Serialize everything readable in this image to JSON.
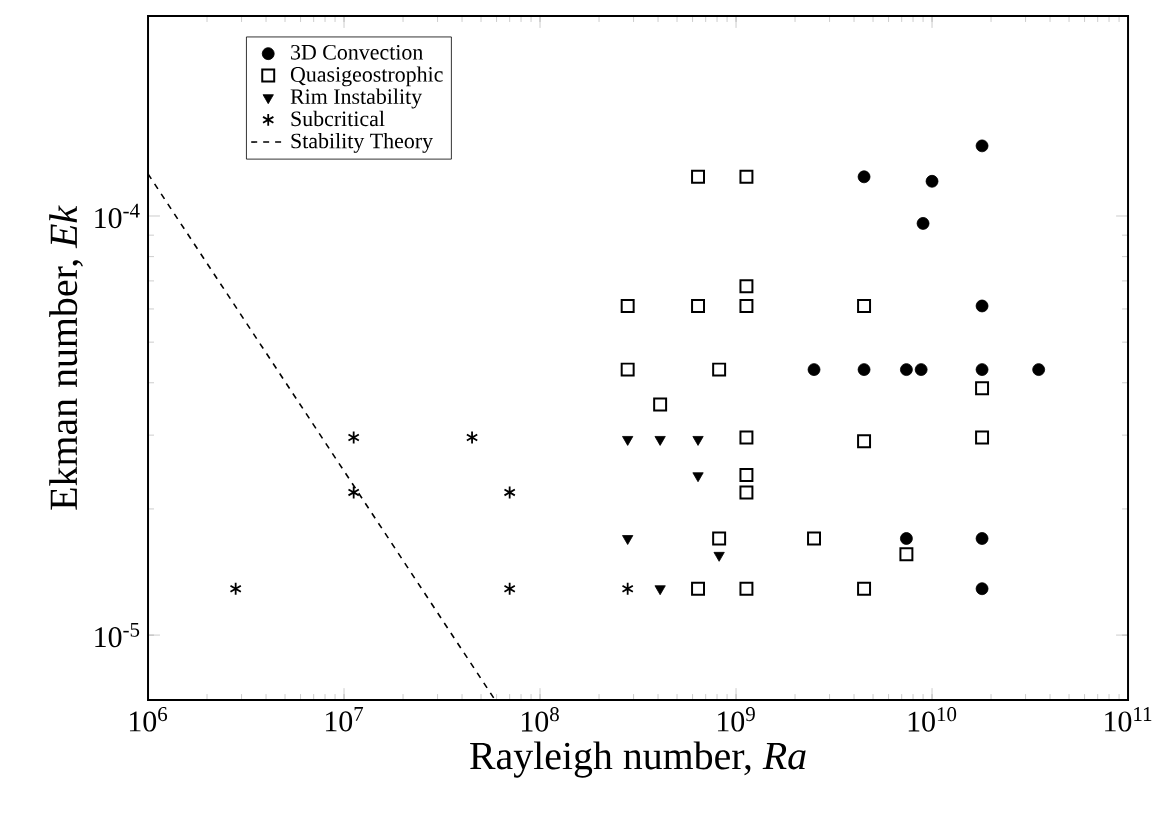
{
  "chart_data": {
    "type": "scatter",
    "xlabel": "Rayleigh number, *Ra*",
    "ylabel": "Ekman number, *Ek*",
    "log": "xy",
    "legend": "top left",
    "xlim": [
      1000000.0,
      100000000000.0
    ],
    "ylim": [
      7e-06,
      0.0003
    ],
    "xticks": [
      {
        "value": 1000000.0,
        "label": "10$^{6}$"
      },
      {
        "value": 10000000.0,
        "label": "10$^{7}$"
      },
      {
        "value": 100000000.0,
        "label": "10$^{8}$"
      },
      {
        "value": 1000000000.0,
        "label": "10$^{9}$"
      },
      {
        "value": 10000000000.0,
        "label": "10$^{10}$"
      },
      {
        "value": 100000000000.0,
        "label": "10$^{11}$"
      }
    ],
    "yticks": [
      {
        "value": 1e-05,
        "label": "10$^{-5}$"
      },
      {
        "value": 0.0001,
        "label": "10$^{-4}$"
      }
    ],
    "series": [
      {
        "name": "3D Convection",
        "color": "#000000",
        "marker": "circle",
        "x": [
          18000000000.0,
          4500000000.0,
          10000000000.0,
          9000000000.0,
          18000000000.0,
          2500000000.0,
          4500000000.0,
          7400000000.0,
          8800000000.0,
          18000000000.0,
          35000000000.0,
          7400000000.0,
          18000000000.0,
          18000000000.0
        ],
        "values": [
          0.000147,
          0.000124,
          0.000121,
          9.6e-05,
          6.1e-05,
          4.3e-05,
          4.3e-05,
          4.3e-05,
          4.3e-05,
          4.3e-05,
          4.3e-05,
          1.7e-05,
          1.7e-05,
          1.29e-05
        ]
      },
      {
        "name": "Quasigeostrophic",
        "color": "#000000",
        "marker": "square",
        "x": [
          640000000.0,
          1130000000.0,
          1130000000.0,
          280000000.0,
          640000000.0,
          1130000000.0,
          4500000000.0,
          280000000.0,
          820000000.0,
          18000000000.0,
          410000000.0,
          1130000000.0,
          18000000000.0,
          4500000000.0,
          1130000000.0,
          1130000000.0,
          820000000.0,
          2500000000.0,
          7400000000.0,
          640000000.0,
          1130000000.0,
          4500000000.0
        ],
        "values": [
          0.000124,
          0.000124,
          6.8e-05,
          6.1e-05,
          6.1e-05,
          6.1e-05,
          6.1e-05,
          4.3e-05,
          4.3e-05,
          3.88e-05,
          3.55e-05,
          2.96e-05,
          2.96e-05,
          2.9e-05,
          2.41e-05,
          2.19e-05,
          1.7e-05,
          1.7e-05,
          1.56e-05,
          1.29e-05,
          1.29e-05,
          1.29e-05
        ]
      },
      {
        "name": "Rim Instability",
        "color": "#000000",
        "marker": "triangle",
        "x": [
          280000000.0,
          410000000.0,
          640000000.0,
          640000000.0,
          280000000.0,
          820000000.0,
          410000000.0
        ],
        "values": [
          2.93e-05,
          2.93e-05,
          2.93e-05,
          2.4e-05,
          1.7e-05,
          1.55e-05,
          1.29e-05
        ]
      },
      {
        "name": "Subcritical",
        "color": "#000000",
        "marker": "cross",
        "x": [
          11200000.0,
          45000000.0,
          11200000.0,
          70000000.0,
          2800000.0,
          70000000.0,
          280000000.0
        ],
        "values": [
          2.96e-05,
          2.96e-05,
          2.19e-05,
          2.19e-05,
          1.29e-05,
          1.29e-05,
          1.29e-05
        ]
      },
      {
        "name": "Stability Theory",
        "type": "line",
        "color": "#000000",
        "marker": "none",
        "line_style": "dashed",
        "x": [
          1000000.0,
          59000000.0
        ],
        "values": [
          0.000126,
          7e-06
        ]
      }
    ]
  }
}
